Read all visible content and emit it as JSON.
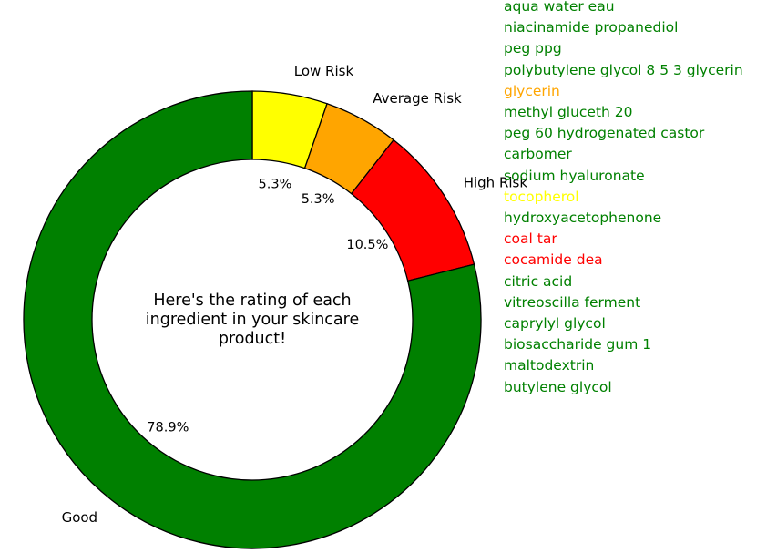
{
  "chart_data": {
    "type": "pie",
    "style": "donut",
    "center_text": [
      "Here's the rating of each",
      "ingredient in your skincare",
      "product!"
    ],
    "slices": [
      {
        "label": "Low Risk",
        "value": 5.3,
        "pct_label": "5.3%",
        "color": "#ffff00"
      },
      {
        "label": "Average Risk",
        "value": 5.3,
        "pct_label": "5.3%",
        "color": "#ffa500"
      },
      {
        "label": "High Risk",
        "value": 10.5,
        "pct_label": "10.5%",
        "color": "#ff0000"
      },
      {
        "label": "Good",
        "value": 78.9,
        "pct_label": "78.9%",
        "color": "#008000"
      }
    ]
  },
  "ingredients": [
    {
      "name": "aqua water eau",
      "color": "#008000"
    },
    {
      "name": "niacinamide propanediol",
      "color": "#008000"
    },
    {
      "name": "peg ppg",
      "color": "#008000"
    },
    {
      "name": "polybutylene glycol 8 5 3 glycerin",
      "color": "#008000"
    },
    {
      "name": "glycerin",
      "color": "#ffa500"
    },
    {
      "name": "methyl gluceth 20",
      "color": "#008000"
    },
    {
      "name": "peg 60 hydrogenated castor",
      "color": "#008000"
    },
    {
      "name": "carbomer",
      "color": "#008000"
    },
    {
      "name": "sodium hyaluronate",
      "color": "#008000"
    },
    {
      "name": "tocopherol",
      "color": "#ffff00"
    },
    {
      "name": "hydroxyacetophenone",
      "color": "#008000"
    },
    {
      "name": "coal tar",
      "color": "#ff0000"
    },
    {
      "name": "cocamide dea",
      "color": "#ff0000"
    },
    {
      "name": "citric acid",
      "color": "#008000"
    },
    {
      "name": "vitreoscilla ferment",
      "color": "#008000"
    },
    {
      "name": "caprylyl glycol",
      "color": "#008000"
    },
    {
      "name": "biosaccharide gum 1",
      "color": "#008000"
    },
    {
      "name": "maltodextrin",
      "color": "#008000"
    },
    {
      "name": "butylene glycol",
      "color": "#008000"
    }
  ]
}
